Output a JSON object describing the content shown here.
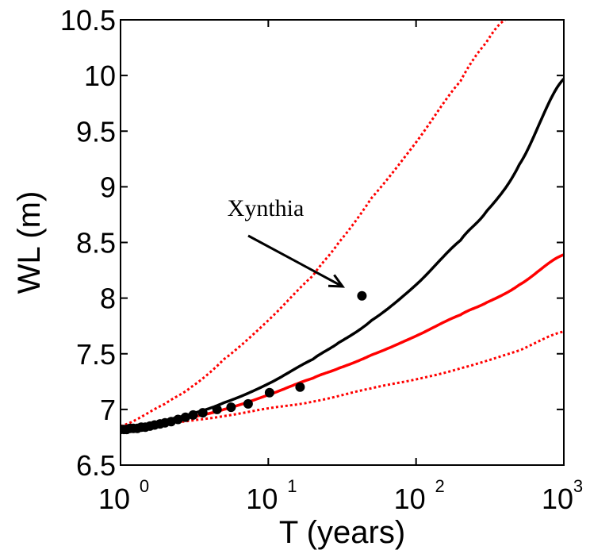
{
  "chart_data": {
    "type": "line",
    "xlabel": "T (years)",
    "ylabel": "WL (m)",
    "xscale": "log",
    "xlim": [
      1,
      1000
    ],
    "ylim": [
      6.5,
      10.5
    ],
    "grid": false,
    "xticks": [
      {
        "value": 1,
        "base": "10",
        "exp": "0"
      },
      {
        "value": 10,
        "base": "10",
        "exp": "1"
      },
      {
        "value": 100,
        "base": "10",
        "exp": "2"
      },
      {
        "value": 1000,
        "base": "10",
        "exp": "3"
      }
    ],
    "yticks": [
      "6.5",
      "7",
      "7.5",
      "8",
      "8.5",
      "9",
      "9.5",
      "10",
      "10.5"
    ],
    "series": [
      {
        "color": "#000000",
        "style": "solid",
        "x": [
          1,
          2,
          3,
          5,
          10,
          20,
          30,
          50,
          100,
          200,
          300,
          500,
          1000
        ],
        "y": [
          6.82,
          6.9,
          6.96,
          7.06,
          7.23,
          7.45,
          7.6,
          7.8,
          8.12,
          8.52,
          8.78,
          9.2,
          9.97
        ]
      },
      {
        "color": "#ff0000",
        "style": "solid",
        "x": [
          1,
          2,
          3,
          5,
          10,
          20,
          30,
          50,
          100,
          200,
          300,
          500,
          1000
        ],
        "y": [
          6.82,
          6.88,
          6.93,
          7.0,
          7.13,
          7.28,
          7.37,
          7.49,
          7.66,
          7.85,
          7.96,
          8.12,
          8.39
        ]
      },
      {
        "color": "#ff0000",
        "style": "dotted",
        "x": [
          1,
          2,
          3,
          5,
          10,
          20,
          30,
          50,
          100,
          200,
          300,
          400
        ],
        "y": [
          6.85,
          7.05,
          7.2,
          7.45,
          7.8,
          8.2,
          8.5,
          8.9,
          9.4,
          9.95,
          10.3,
          10.5
        ]
      },
      {
        "color": "#ff0000",
        "style": "dotted",
        "x": [
          1,
          2,
          3,
          5,
          10,
          20,
          50,
          100,
          200,
          500,
          1000
        ],
        "y": [
          6.82,
          6.87,
          6.9,
          6.94,
          7.01,
          7.07,
          7.19,
          7.27,
          7.37,
          7.53,
          7.7
        ]
      }
    ],
    "observations": {
      "color": "#000000",
      "x": [
        1.0,
        1.05,
        1.1,
        1.16,
        1.22,
        1.3,
        1.38,
        1.47,
        1.58,
        1.7,
        1.85,
        2.0,
        2.2,
        2.45,
        2.75,
        3.1,
        3.6,
        4.5,
        5.6,
        7.3,
        10.2,
        16.4,
        43
      ],
      "y": [
        6.82,
        6.82,
        6.82,
        6.83,
        6.83,
        6.83,
        6.84,
        6.84,
        6.85,
        6.86,
        6.87,
        6.88,
        6.89,
        6.91,
        6.93,
        6.95,
        6.97,
        7.0,
        7.02,
        7.05,
        7.15,
        7.2,
        8.02
      ]
    },
    "annotations": [
      {
        "text": "Xynthia",
        "x": 40,
        "y": 8.1
      }
    ]
  }
}
